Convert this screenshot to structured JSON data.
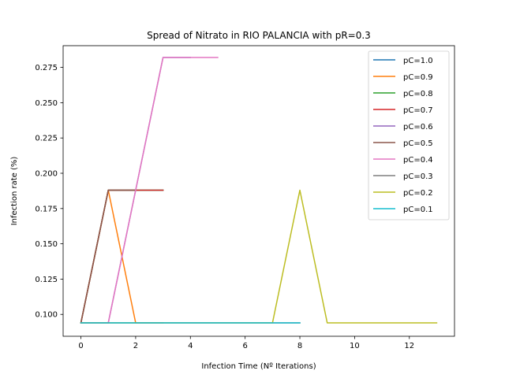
{
  "chart_data": {
    "type": "line",
    "title": "Spread of Nitrato in RIO PALANCIA with pR=0.3",
    "xlabel": "Infection Time (Nº Iterations)",
    "ylabel": "Infection rate (%)",
    "xlim": [
      -0.65,
      13.65
    ],
    "ylim": [
      0.0845,
      0.2904
    ],
    "xticks": [
      0,
      2,
      4,
      6,
      8,
      10,
      12
    ],
    "yticks": [
      0.1,
      0.125,
      0.15,
      0.175,
      0.2,
      0.225,
      0.25,
      0.275
    ],
    "ytick_labels": [
      "0.100",
      "0.125",
      "0.150",
      "0.175",
      "0.200",
      "0.225",
      "0.250",
      "0.275"
    ],
    "grid": false,
    "legend_position": "top-right",
    "series": [
      {
        "name": "pC=1.0",
        "color": "#1f77b4",
        "x": [
          0,
          1,
          2,
          3
        ],
        "y": [
          0.094,
          0.188,
          0.188,
          0.188
        ]
      },
      {
        "name": "pC=0.9",
        "color": "#ff7f0e",
        "x": [
          0,
          1,
          2,
          3
        ],
        "y": [
          0.094,
          0.188,
          0.094,
          0.094
        ]
      },
      {
        "name": "pC=0.8",
        "color": "#2ca02c",
        "x": [
          0,
          1,
          2,
          3
        ],
        "y": [
          0.094,
          0.188,
          0.188,
          0.188
        ]
      },
      {
        "name": "pC=0.7",
        "color": "#d62728",
        "x": [
          0,
          1,
          2,
          3
        ],
        "y": [
          0.094,
          0.188,
          0.188,
          0.188
        ]
      },
      {
        "name": "pC=0.6",
        "color": "#9467bd",
        "x": [
          0,
          1,
          2,
          3,
          4
        ],
        "y": [
          0.094,
          0.094,
          0.188,
          0.282,
          0.282
        ]
      },
      {
        "name": "pC=0.5",
        "color": "#8c564b",
        "x": [
          0,
          1,
          2
        ],
        "y": [
          0.094,
          0.188,
          0.188
        ]
      },
      {
        "name": "pC=0.4",
        "color": "#e377c2",
        "x": [
          0,
          1,
          2,
          3,
          4,
          5
        ],
        "y": [
          0.094,
          0.094,
          0.188,
          0.282,
          0.282,
          0.282
        ]
      },
      {
        "name": "pC=0.3",
        "color": "#7f7f7f",
        "x": [
          0,
          1,
          2,
          3,
          4,
          5,
          6,
          7,
          8
        ],
        "y": [
          0.094,
          0.094,
          0.094,
          0.094,
          0.094,
          0.094,
          0.094,
          0.094,
          0.094
        ]
      },
      {
        "name": "pC=0.2",
        "color": "#bcbd22",
        "x": [
          0,
          1,
          2,
          3,
          4,
          5,
          6,
          7,
          8,
          9,
          10,
          11,
          12,
          13
        ],
        "y": [
          0.094,
          0.094,
          0.094,
          0.094,
          0.094,
          0.094,
          0.094,
          0.094,
          0.188,
          0.094,
          0.094,
          0.094,
          0.094,
          0.094
        ]
      },
      {
        "name": "pC=0.1",
        "color": "#17becf",
        "x": [
          0,
          1,
          2,
          3,
          4,
          5,
          6,
          7,
          8
        ],
        "y": [
          0.094,
          0.094,
          0.094,
          0.094,
          0.094,
          0.094,
          0.094,
          0.094,
          0.094
        ]
      }
    ]
  }
}
